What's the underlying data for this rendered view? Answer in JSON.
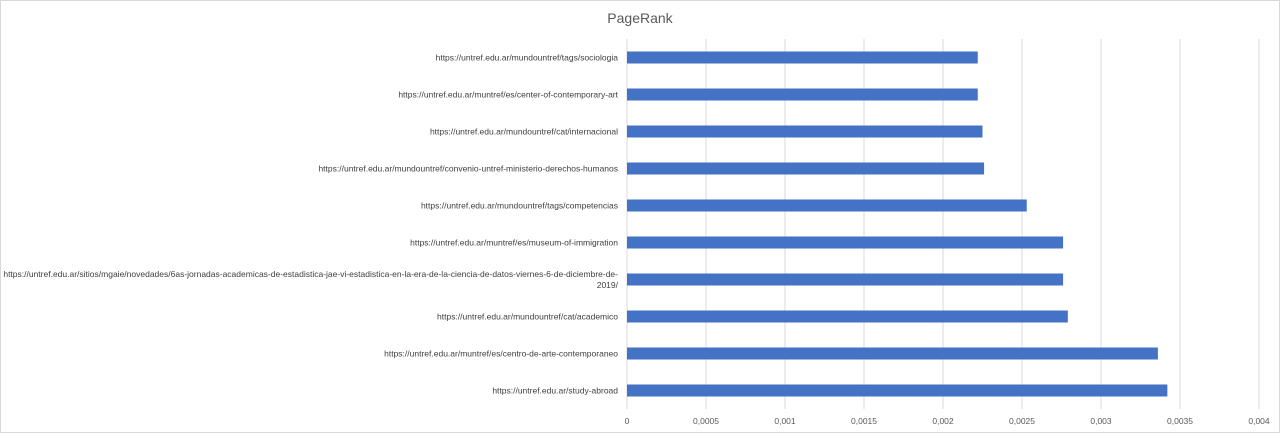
{
  "chart_data": {
    "type": "bar",
    "orientation": "horizontal",
    "title": "PageRank",
    "xlabel": "",
    "ylabel": "",
    "categories": [
      {
        "lines": [
          "https://untref.edu.ar/study-abroad"
        ]
      },
      {
        "lines": [
          "https://untref.edu.ar/muntref/es/centro-de-arte-contemporaneo"
        ]
      },
      {
        "lines": [
          "https://untref.edu.ar/mundountref/cat/academico"
        ]
      },
      {
        "lines": [
          "https://untref.edu.ar/sitios/mgaie/novedades/6as-jornadas-academicas-de-estadistica-jae-vi-estadistica-en-la-era-de-la-ciencia-de-datos-viernes-6-de-diciembre-de-",
          "2019/"
        ]
      },
      {
        "lines": [
          "https://untref.edu.ar/muntref/es/museum-of-immigration"
        ]
      },
      {
        "lines": [
          "https://untref.edu.ar/mundountref/tags/competencias"
        ]
      },
      {
        "lines": [
          "https://untref.edu.ar/mundountref/convenio-untref-ministerio-derechos-humanos"
        ]
      },
      {
        "lines": [
          "https://untref.edu.ar/mundountref/cat/internacional"
        ]
      },
      {
        "lines": [
          "https://untref.edu.ar/muntref/es/center-of-contemporary-art"
        ]
      },
      {
        "lines": [
          "https://untref.edu.ar/mundountref/tags/sociologia"
        ]
      }
    ],
    "values": [
      0.00342,
      0.00336,
      0.00279,
      0.00276,
      0.00276,
      0.00253,
      0.00226,
      0.00225,
      0.00222,
      0.00222
    ],
    "xlim": [
      0,
      0.004
    ],
    "xticks": [
      {
        "value": 0,
        "label": "0"
      },
      {
        "value": 0.0005,
        "label": "0,0005"
      },
      {
        "value": 0.001,
        "label": "0,001"
      },
      {
        "value": 0.0015,
        "label": "0,0015"
      },
      {
        "value": 0.002,
        "label": "0,002"
      },
      {
        "value": 0.0025,
        "label": "0,0025"
      },
      {
        "value": 0.003,
        "label": "0,003"
      },
      {
        "value": 0.0035,
        "label": "0,0035"
      },
      {
        "value": 0.004,
        "label": "0,004"
      }
    ],
    "grid": "vertical",
    "legend": "none",
    "bar_color": "#4472c4",
    "grid_color": "#d9d9d9"
  }
}
